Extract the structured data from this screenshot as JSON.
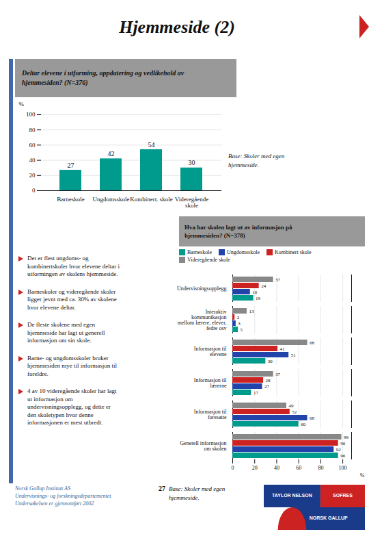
{
  "title": "Hjemmeside (2)",
  "annotations": [
    "Det er flest ungdoms- og\nkombinertskoler hvor elevene deltar i\nutformingen av skolens hjemmeside.",
    "Barneskoler og videregående skoler\nligger jevnt med ca. 30%  av skolene\nhvor elevene deltar.",
    "De fleste skolene med egen\nhjemmeside har lagt ut generell\ninformasjon om sin skole.",
    "Barne- og ungdomsskoler bruker\nhjemmesiden mye til informasjon til\nforeldre.",
    "4 av 10 videregående skoler har lagt\nut informasjon om\nundervisningsopplegg, og dette er\nden skoletypen hvor denne\ninformasjonen er mest utbredt.",
    "Norsk Gallup Institutt AS\nUndervisnings- og forskningsdepartementet\nUndersøkelsen er gjennomført 2002",
    "27",
    "Base: Skoler med egen\nhjemmeside.",
    "TAYLOR NELSON",
    "SOFRES",
    "NORSK GALLUP"
  ],
  "chart_data": [
    {
      "type": "bar",
      "title": "Deltar elevene i utforming, oppdatering og vedlikehold av\nhjemmesiden? (N=376)",
      "categories": [
        "Barneskole",
        "Ungdomsskole",
        "Kombinert. skole",
        "Videregående\nskole"
      ],
      "values": [
        27,
        42,
        54,
        30
      ],
      "color": "#009B8D",
      "ylabel": "%",
      "ylim": [
        0,
        100
      ],
      "yticks": [
        0,
        20,
        40,
        60,
        80,
        100
      ],
      "grid": true,
      "data_labels": true,
      "annotations": [
        "Base: Skoler med egen\nhjemmeside."
      ]
    },
    {
      "type": "bar",
      "orientation": "horizontal",
      "title": "Hva har skolen lagt ut av informasjon på\nhjemmesiden? (N=378)",
      "categories": [
        "Undervisningsopplegg",
        "Interaktiv\nkommunikasjon\nmellom lærere, elever,\nfedre osv",
        "Informasjon til\nelevene",
        "Informasjon til\nlærerne",
        "Informasjon til\nforesatte",
        "Generell informasjon\nom skolen"
      ],
      "series": [
        {
          "name": "Barneskole",
          "color": "#009B8D",
          "values": [
            19,
            5,
            30,
            17,
            60,
            96
          ]
        },
        {
          "name": "Ungdomsskole",
          "color": "#2244AA",
          "values": [
            16,
            3,
            51,
            27,
            68,
            92
          ]
        },
        {
          "name": "Kombinert skole",
          "color": "#CC2222",
          "values": [
            24,
            2,
            41,
            28,
            52,
            96
          ]
        },
        {
          "name": "Videregående skole",
          "color": "#888888",
          "values": [
            37,
            13,
            68,
            37,
            49,
            99
          ]
        }
      ],
      "xlabel": "%",
      "xlim": [
        0,
        108
      ],
      "xticks": [
        0,
        20,
        40,
        60,
        80,
        100
      ],
      "grid": true,
      "data_labels": true
    }
  ]
}
